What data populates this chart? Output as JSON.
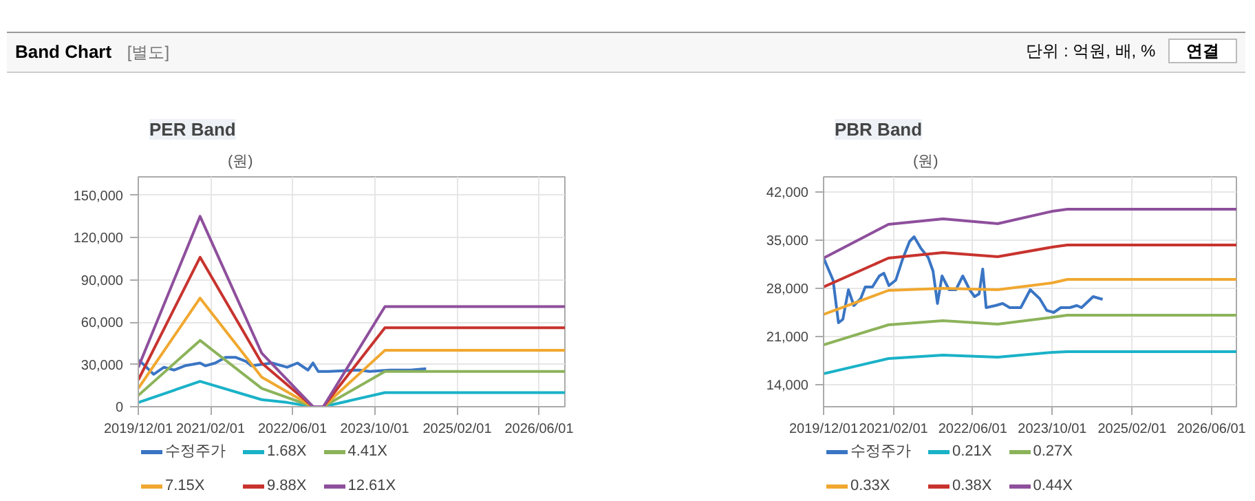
{
  "chart_data": [
    {
      "type": "line",
      "title": "PER Band",
      "ylabel": "(원)",
      "annotations": [
        "Band Chart",
        "[별도]",
        "단위 : 억원, 배, %",
        "연결"
      ],
      "xlim": [
        "2019-12-01",
        "2026-11-01"
      ],
      "xticks": [
        {
          "value": "2019-12-01",
          "label": "2019/12/01"
        },
        {
          "value": "2021-02-01",
          "label": "2021/02/01"
        },
        {
          "value": "2022-06-01",
          "label": "2022/06/01"
        },
        {
          "value": "2023-10-01",
          "label": "2023/10/01"
        },
        {
          "value": "2025-02-01",
          "label": "2025/02/01"
        },
        {
          "value": "2026-06-01",
          "label": "2026/06/01"
        }
      ],
      "ylim": [
        0,
        163000
      ],
      "yticks": [
        {
          "value": 0,
          "label": "0"
        },
        {
          "value": 30000,
          "label": "30,000"
        },
        {
          "value": 60000,
          "label": "60,000"
        },
        {
          "value": 90000,
          "label": "90,000"
        },
        {
          "value": 120000,
          "label": "120,000"
        },
        {
          "value": 150000,
          "label": "150,000"
        }
      ],
      "grid": true,
      "legend": "bottom",
      "marker": "none",
      "line_style": "solid",
      "series": [
        {
          "name": "수정주가",
          "color": "#3a75c4",
          "x": [
            "2019-12",
            "2020-01",
            "2020-03",
            "2020-05",
            "2020-07",
            "2020-09",
            "2020-12",
            "2021-01",
            "2021-03",
            "2021-05",
            "2021-07",
            "2021-09",
            "2021-10",
            "2022-02",
            "2022-05",
            "2022-07",
            "2022-09",
            "2022-10",
            "2022-11",
            "2023-01",
            "2023-07",
            "2023-09",
            "2024-01",
            "2024-05",
            "2024-08"
          ],
          "values": [
            33000,
            30000,
            23000,
            28000,
            26000,
            29000,
            31000,
            29000,
            31000,
            35000,
            35000,
            32000,
            29000,
            31000,
            28000,
            31000,
            26000,
            31000,
            25000,
            25000,
            26000,
            25000,
            26000,
            26000,
            27000
          ]
        },
        {
          "name": "1.68X",
          "color": "#1ab2c8",
          "x": [
            "2019-12",
            "2020-12",
            "2021-12",
            "2022-05",
            "2022-10",
            "2022-12",
            "2023-12",
            "2026-11"
          ],
          "values": [
            3000,
            18000,
            5000,
            3000,
            0,
            0,
            10000,
            10000
          ]
        },
        {
          "name": "4.41X",
          "color": "#8cb35a",
          "x": [
            "2019-12",
            "2020-12",
            "2021-12",
            "2022-10",
            "2022-12",
            "2023-12",
            "2026-11"
          ],
          "values": [
            8000,
            47000,
            13000,
            0,
            0,
            25000,
            25000
          ]
        },
        {
          "name": "7.15X",
          "color": "#f0a830",
          "x": [
            "2019-12",
            "2020-12",
            "2021-12",
            "2022-10",
            "2022-12",
            "2023-12",
            "2026-11"
          ],
          "values": [
            13000,
            77000,
            21000,
            0,
            0,
            40000,
            40000
          ]
        },
        {
          "name": "9.88X",
          "color": "#c8332e",
          "x": [
            "2019-12",
            "2020-12",
            "2021-12",
            "2022-10",
            "2022-12",
            "2023-12",
            "2026-11"
          ],
          "values": [
            19000,
            106000,
            31000,
            0,
            0,
            56000,
            56000
          ]
        },
        {
          "name": "12.61X",
          "color": "#8e4f9c",
          "x": [
            "2019-12",
            "2020-12",
            "2021-12",
            "2022-10",
            "2022-12",
            "2023-12",
            "2026-11"
          ],
          "values": [
            28000,
            135000,
            38000,
            0,
            0,
            71000,
            71000
          ]
        }
      ]
    },
    {
      "type": "line",
      "title": "PBR Band",
      "ylabel": "(원)",
      "xlim": [
        "2019-12-01",
        "2026-11-01"
      ],
      "xticks": [
        {
          "value": "2019-12-01",
          "label": "2019/12/01"
        },
        {
          "value": "2021-02-01",
          "label": "2021/02/01"
        },
        {
          "value": "2022-06-01",
          "label": "2022/06/01"
        },
        {
          "value": "2023-10-01",
          "label": "2023/10/01"
        },
        {
          "value": "2025-02-01",
          "label": "2025/02/01"
        },
        {
          "value": "2026-06-01",
          "label": "2026/06/01"
        }
      ],
      "ylim": [
        10800,
        44200
      ],
      "yticks": [
        {
          "value": 14000,
          "label": "14,000"
        },
        {
          "value": 21000,
          "label": "21,000"
        },
        {
          "value": 28000,
          "label": "28,000"
        },
        {
          "value": 35000,
          "label": "35,000"
        },
        {
          "value": 42000,
          "label": "42,000"
        }
      ],
      "grid": true,
      "legend": "bottom",
      "marker": "none",
      "line_style": "solid",
      "series": [
        {
          "name": "수정주가",
          "color": "#3a75c4",
          "x": [
            "2019-12-01",
            "2020-01-28",
            "2020-03-01",
            "2020-03-28",
            "2020-05-01",
            "2020-06-03",
            "2020-07-15",
            "2020-08-12",
            "2020-09-25",
            "2020-11-06",
            "2020-12-04",
            "2021-01-04",
            "2021-02-15",
            "2021-03-28",
            "2021-05-10",
            "2021-06-07",
            "2021-07-19",
            "2021-09-01",
            "2021-10-01",
            "2021-10-28",
            "2021-11-25",
            "2022-01-07",
            "2022-02-18",
            "2022-04-01",
            "2022-05-13",
            "2022-06-12",
            "2022-07-10",
            "2022-08-01",
            "2022-08-22",
            "2022-10-18",
            "2022-12-01",
            "2023-01-13",
            "2023-03-22",
            "2023-05-19",
            "2023-07-16",
            "2023-08-28",
            "2023-10-10",
            "2023-11-22",
            "2024-01-16",
            "2024-02-28",
            "2024-03-28",
            "2024-06-07",
            "2024-08-04"
          ],
          "values": [
            32400,
            29200,
            23000,
            23500,
            27800,
            25500,
            26500,
            28200,
            28200,
            29800,
            30200,
            28400,
            29200,
            32200,
            34800,
            35500,
            33800,
            32500,
            30500,
            25800,
            29800,
            27800,
            27800,
            29800,
            27800,
            26800,
            27200,
            30800,
            25200,
            25500,
            25800,
            25200,
            25200,
            27800,
            26500,
            24800,
            24500,
            25200,
            25200,
            25500,
            25200,
            26800,
            26400
          ]
        },
        {
          "name": "0.21X",
          "color": "#1ab2c8",
          "x": [
            "2019-12",
            "2021-01",
            "2021-12",
            "2022-11",
            "2023-10",
            "2024-01",
            "2026-11"
          ],
          "values": [
            15600,
            17800,
            18300,
            18000,
            18700,
            18800,
            18800
          ]
        },
        {
          "name": "0.27X",
          "color": "#8cb35a",
          "x": [
            "2019-12",
            "2021-01",
            "2021-12",
            "2022-11",
            "2023-10",
            "2024-01",
            "2026-11"
          ],
          "values": [
            19800,
            22700,
            23300,
            22800,
            23800,
            24100,
            24100
          ]
        },
        {
          "name": "0.33X",
          "color": "#f0a830",
          "x": [
            "2019-12",
            "2021-01",
            "2021-12",
            "2022-11",
            "2023-10",
            "2024-01",
            "2026-11"
          ],
          "values": [
            24200,
            27700,
            28000,
            27800,
            28800,
            29300,
            29300
          ]
        },
        {
          "name": "0.38X",
          "color": "#c8332e",
          "x": [
            "2019-12",
            "2021-01",
            "2021-12",
            "2022-11",
            "2023-10",
            "2024-01",
            "2026-11"
          ],
          "values": [
            28200,
            32400,
            33200,
            32600,
            34000,
            34300,
            34300
          ]
        },
        {
          "name": "0.44X",
          "color": "#8e4f9c",
          "x": [
            "2019-12",
            "2021-01",
            "2021-12",
            "2022-11",
            "2023-10",
            "2024-01",
            "2026-11"
          ],
          "values": [
            32400,
            37300,
            38100,
            37400,
            39200,
            39500,
            39500
          ]
        }
      ]
    }
  ]
}
